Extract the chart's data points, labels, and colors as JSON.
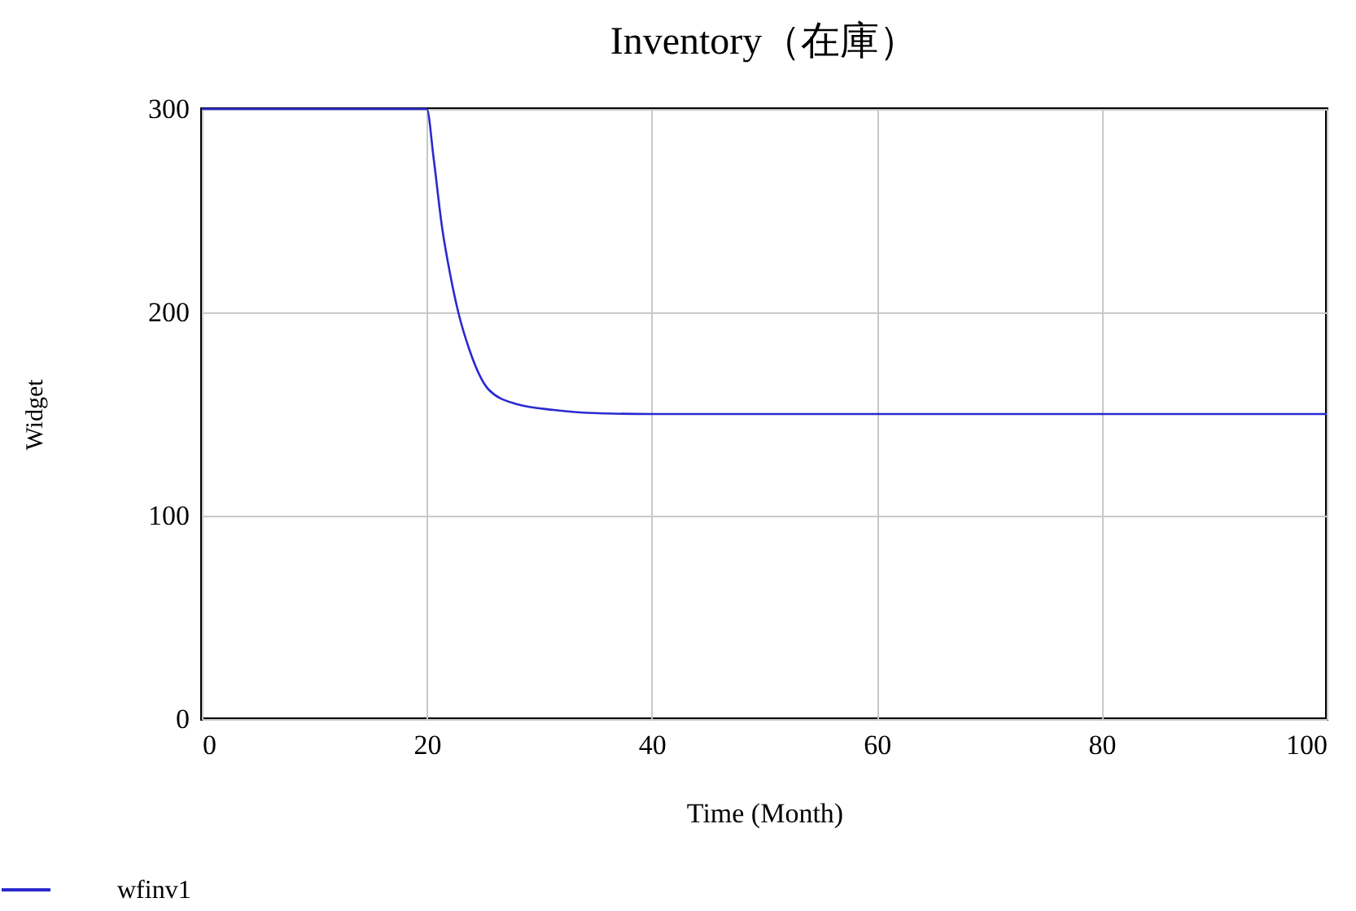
{
  "chart_data": {
    "type": "line",
    "title": "Inventory（在庫）",
    "xlabel": "Time (Month)",
    "ylabel": "Widget",
    "x": [
      0,
      10,
      20,
      20.6,
      21.35,
      22.1,
      22.8,
      23.7,
      25.5,
      27.9,
      31.3,
      34.2,
      40,
      60,
      80,
      100
    ],
    "series": [
      {
        "name": "wfinv1",
        "color": "#2a2ad0",
        "values": [
          300,
          300,
          300,
          276,
          242,
          218,
          200,
          183,
          162,
          155,
          152,
          150.6,
          150,
          150,
          150,
          150
        ]
      }
    ],
    "xlim": [
      0,
      100
    ],
    "xticks": [
      0,
      20,
      40,
      60,
      80,
      100
    ],
    "ylim": [
      0,
      300
    ],
    "yticks": [
      0,
      100,
      200,
      300
    ],
    "grid": true,
    "legend": "bottom left",
    "line_style": "solid",
    "marker": "none"
  }
}
